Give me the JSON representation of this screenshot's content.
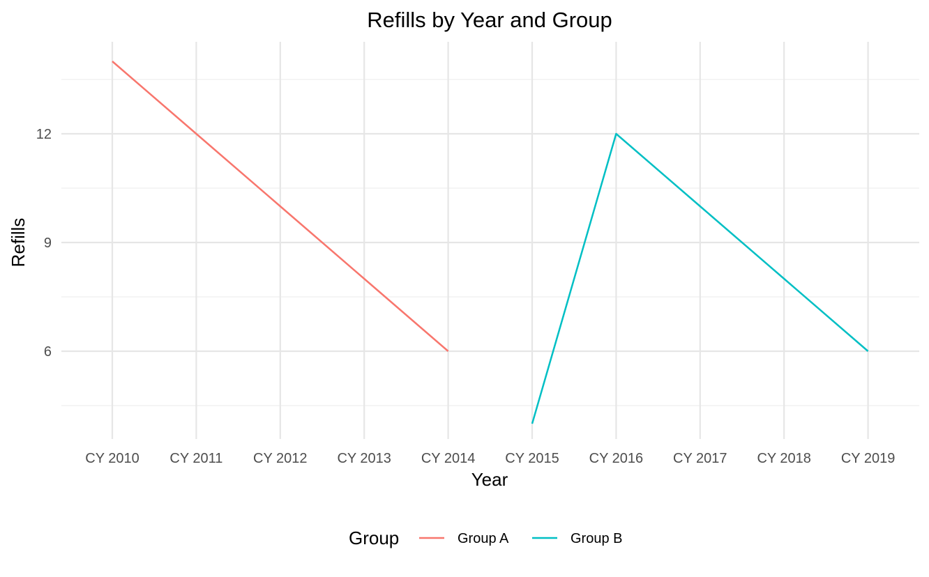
{
  "chart_data": {
    "type": "line",
    "title": "Refills by Year and Group",
    "xlabel": "Year",
    "ylabel": "Refills",
    "categories": [
      "CY 2010",
      "CY 2011",
      "CY 2012",
      "CY 2013",
      "CY 2014",
      "CY 2015",
      "CY 2016",
      "CY 2017",
      "CY 2018",
      "CY 2019"
    ],
    "y_ticks": [
      6,
      9,
      12
    ],
    "ylim": [
      3.3,
      14.9
    ],
    "grid": true,
    "legend": {
      "title": "Group",
      "position": "bottom"
    },
    "series": [
      {
        "name": "Group A",
        "color": "#F8766D",
        "points": [
          {
            "x": "CY 2010",
            "y": 14
          },
          {
            "x": "CY 2011",
            "y": 12
          },
          {
            "x": "CY 2012",
            "y": 10
          },
          {
            "x": "CY 2013",
            "y": 8
          },
          {
            "x": "CY 2014",
            "y": 6
          }
        ]
      },
      {
        "name": "Group B",
        "color": "#00BFC4",
        "points": [
          {
            "x": "CY 2015",
            "y": 4
          },
          {
            "x": "CY 2016",
            "y": 12
          },
          {
            "x": "CY 2017",
            "y": 10
          },
          {
            "x": "CY 2018",
            "y": 8
          },
          {
            "x": "CY 2019",
            "y": 6
          }
        ]
      }
    ]
  }
}
